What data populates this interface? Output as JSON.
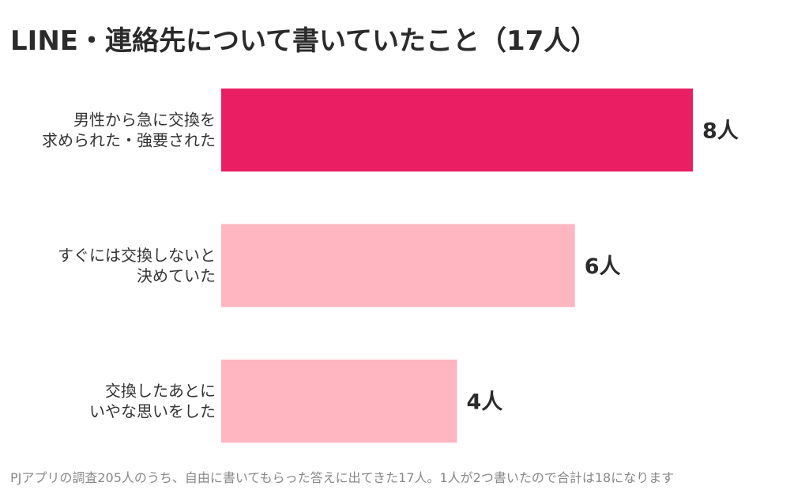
{
  "chart_data": {
    "type": "bar",
    "orientation": "horizontal",
    "title": "LINE・連絡先について書いていたこと（17人）",
    "categories": [
      [
        "男性から急に交換を",
        "求められた・強要された"
      ],
      [
        "すぐには交換しないと",
        "決めていた"
      ],
      [
        "交換したあとに",
        "いやな思いをした"
      ]
    ],
    "values": [
      8,
      6,
      4
    ],
    "value_labels": [
      "8人",
      "6人",
      "4人"
    ],
    "bar_colors": [
      "#e91e63",
      "#ffb6c1",
      "#ffb6c1"
    ],
    "xlim": [
      0,
      8
    ],
    "grid": false,
    "legend": "none"
  },
  "footnote": "PJアプリの調査205人のうち、自由に書いてもらった答えに出てきた17人。1人が2つ書いたので合計は18になります"
}
